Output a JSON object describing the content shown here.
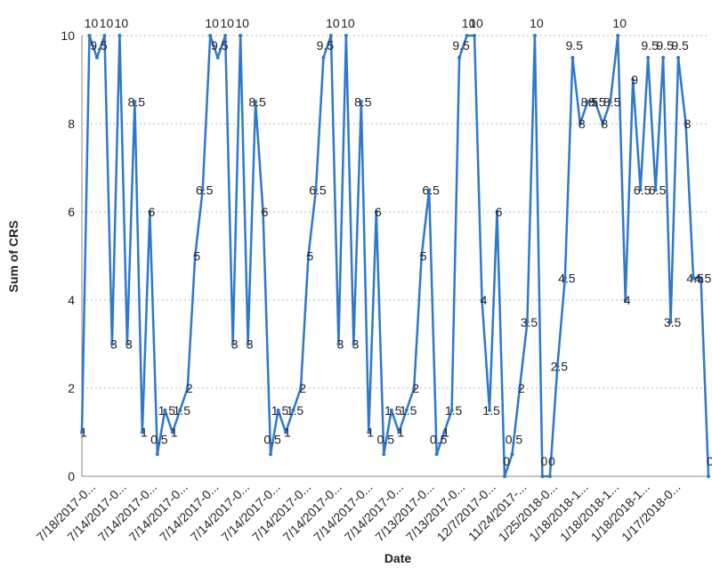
{
  "chart_data": {
    "type": "line",
    "title": "",
    "xlabel": "Date",
    "ylabel": "Sum of CRS",
    "ylim": [
      0,
      10
    ],
    "yticks": [
      0,
      2,
      4,
      6,
      8,
      10
    ],
    "grid": true,
    "legend": "none",
    "colors": {
      "line": "#2f78cc",
      "point": "#2f78cc"
    },
    "xtick_labels": [
      "7/18/2017-0...",
      "7/14/2017-0...",
      "7/14/2017-0...",
      "7/14/2017-0...",
      "7/14/2017-0...",
      "7/14/2017-0...",
      "7/14/2017-0...",
      "7/14/2017-0...",
      "7/14/2017-0...",
      "7/14/2017-0...",
      "7/14/2017-0...",
      "7/13/2017-0...",
      "7/13/2017-0...",
      "12/7/2017-0...",
      "11/24/2017-...",
      "1/25/2018-0...",
      "1/18/2018-1...",
      "1/18/2018-1...",
      "1/18/2018-1...",
      "1/17/2018-0..."
    ],
    "series": [
      {
        "name": "",
        "values": [
          1,
          10,
          9.5,
          10,
          3,
          10,
          3,
          8.5,
          1,
          6,
          0.5,
          1.5,
          1,
          1.5,
          2,
          5,
          6.5,
          10,
          9.5,
          10,
          3,
          10,
          3,
          8.5,
          6,
          0.5,
          1.5,
          1,
          1.5,
          2,
          5,
          6.5,
          9.5,
          10,
          3,
          10,
          3,
          8.5,
          1,
          6,
          0.5,
          1.5,
          1,
          1.5,
          2,
          5,
          6.5,
          0.5,
          1,
          1.5,
          9.5,
          10,
          10,
          4,
          1.5,
          6,
          0,
          0.5,
          2,
          3.5,
          10,
          0,
          0,
          2.5,
          4.5,
          9.5,
          8,
          8.5,
          8.5,
          8,
          8.5,
          10,
          4,
          9,
          6.5,
          9.5,
          6.5,
          9.5,
          3.5,
          9.5,
          8,
          4.5,
          4.5,
          0
        ]
      }
    ]
  }
}
